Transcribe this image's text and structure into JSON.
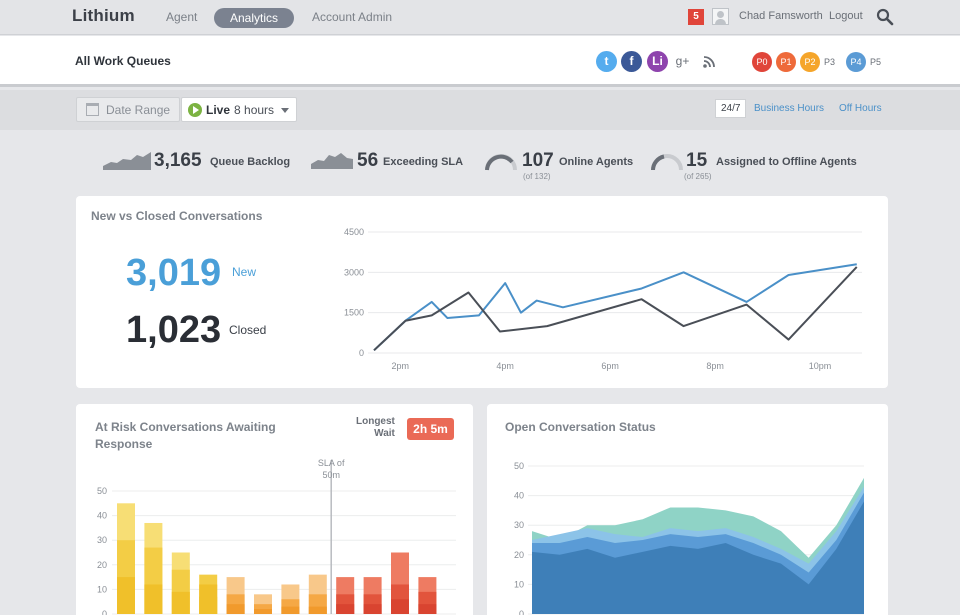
{
  "app": {
    "logo": "Lithium"
  },
  "nav": {
    "agent": "Agent",
    "analytics": "Analytics",
    "account_admin": "Account Admin"
  },
  "user": {
    "notifications": "5",
    "name": "Chad Famsworth",
    "logout": "Logout"
  },
  "header": {
    "title": "All Work Queues"
  },
  "social": [
    {
      "icon": "twitter-icon",
      "glyph": "t",
      "color": "#55acee"
    },
    {
      "icon": "facebook-icon",
      "glyph": "f",
      "color": "#3b5998"
    },
    {
      "icon": "lithium-icon",
      "glyph": "Li",
      "color": "#8e44ad"
    },
    {
      "icon": "google-plus-icon",
      "glyph": "g+",
      "color": "#ffffff"
    },
    {
      "icon": "rss-icon",
      "glyph": "",
      "color": "#ffffff"
    }
  ],
  "priorities": [
    {
      "label": "P0",
      "color": "#e0453a",
      "badge": true
    },
    {
      "label": "P1",
      "color": "#ee6a3a",
      "badge": true
    },
    {
      "label": "P2",
      "color": "#f5a52a",
      "badge": true
    },
    {
      "label": "P3",
      "badge": false
    },
    {
      "label": "P4",
      "color": "#5b9bd5",
      "badge": true
    },
    {
      "label": "P5",
      "badge": false
    }
  ],
  "filters": {
    "date_range": "Date Range",
    "live_label": "Live",
    "live_value": "8 hours",
    "hours_24_7": "24/7",
    "business_hours": "Business Hours",
    "off_hours": "Off Hours"
  },
  "stats": {
    "queue_backlog": {
      "value": "3,165",
      "label": "Queue Backlog"
    },
    "exceeding_sla": {
      "value": "56",
      "label": "Exceeding SLA"
    },
    "online_agents": {
      "value": "107",
      "label": "Online Agents",
      "sub": "(of 132)"
    },
    "offline_agents": {
      "value": "15",
      "label": "Assigned to Offline Agents",
      "sub": "(of 265)"
    }
  },
  "new_vs_closed": {
    "title": "New vs Closed Conversations",
    "new_value": "3,019",
    "new_label": "New",
    "closed_value": "1,023",
    "closed_label": "Closed"
  },
  "at_risk": {
    "title_line1": "At Risk Conversations Awaiting",
    "title_line2": "Response",
    "longest_line1": "Longest",
    "longest_line2": "Wait",
    "wait_value": "2h 5m",
    "sla_line1": "SLA of",
    "sla_line2": "50m"
  },
  "open_status": {
    "title": "Open Conversation Status"
  },
  "chart_data": [
    {
      "type": "line",
      "x_ticks": [
        "2pm",
        "4pm",
        "6pm",
        "8pm",
        "10pm"
      ],
      "ylim": [
        0,
        4500
      ],
      "y_ticks": [
        0,
        1500,
        3000,
        4500
      ],
      "series": [
        {
          "color": "#4a90c8",
          "x": [
            1.5,
            2.1,
            2.6,
            2.9,
            3.5,
            4.0,
            4.3,
            4.6,
            5.1,
            6.6,
            7.4,
            8.6,
            9.4,
            10.7
          ],
          "values": [
            100,
            1200,
            1900,
            1300,
            1400,
            2600,
            1500,
            1950,
            1700,
            2400,
            3000,
            1900,
            2900,
            3300
          ]
        },
        {
          "color": "#4a4f57",
          "x": [
            1.5,
            2.1,
            2.6,
            3.3,
            3.9,
            4.8,
            6.6,
            7.4,
            8.6,
            9.4,
            10.7
          ],
          "values": [
            100,
            1200,
            1400,
            2250,
            800,
            1000,
            2000,
            1000,
            1800,
            500,
            3200
          ]
        }
      ]
    },
    {
      "type": "bar",
      "ylim": [
        0,
        50
      ],
      "y_ticks": [
        0,
        10,
        20,
        30,
        40,
        50
      ],
      "reference_line_index": 8,
      "bars": [
        {
          "total": 45,
          "inner": 30,
          "base": 15,
          "light": "#f7de75",
          "mid": "#f3cd45",
          "dark": "#f0c02a"
        },
        {
          "total": 37,
          "inner": 27,
          "base": 12,
          "light": "#f7de75",
          "mid": "#f3cd45",
          "dark": "#f0c02a"
        },
        {
          "total": 25,
          "inner": 18,
          "base": 9,
          "light": "#f7de75",
          "mid": "#f3cd45",
          "dark": "#f0c02a"
        },
        {
          "total": 16,
          "inner": 12,
          "base": 7,
          "light": "#f3cd45",
          "mid": "#f0c02a",
          "dark": "#f0c02a"
        },
        {
          "total": 15,
          "inner": 8,
          "base": 4,
          "light": "#f8c88a",
          "mid": "#f5a845",
          "dark": "#f19a2c"
        },
        {
          "total": 8,
          "inner": 4,
          "base": 2,
          "light": "#f8c88a",
          "mid": "#f5a845",
          "dark": "#f19a2c"
        },
        {
          "total": 12,
          "inner": 6,
          "base": 3,
          "light": "#f8c88a",
          "mid": "#f5a845",
          "dark": "#f19a2c"
        },
        {
          "total": 16,
          "inner": 8,
          "base": 3,
          "light": "#f8c88a",
          "mid": "#f5a845",
          "dark": "#f19a2c"
        },
        {
          "total": 15,
          "inner": 8,
          "base": 4,
          "light": "#ee7b62",
          "mid": "#e2543c",
          "dark": "#d94430"
        },
        {
          "total": 15,
          "inner": 8,
          "base": 4,
          "light": "#ee7b62",
          "mid": "#e2543c",
          "dark": "#d94430"
        },
        {
          "total": 25,
          "inner": 12,
          "base": 6,
          "light": "#ee7b62",
          "mid": "#e2543c",
          "dark": "#d94430"
        },
        {
          "total": 15,
          "inner": 9,
          "base": 4,
          "light": "#ee7b62",
          "mid": "#e2543c",
          "dark": "#d94430"
        }
      ]
    },
    {
      "type": "area",
      "ylim": [
        0,
        50
      ],
      "y_ticks": [
        0,
        10,
        20,
        30,
        40,
        50
      ],
      "x": [
        0,
        1,
        2,
        3,
        4,
        5,
        6,
        7,
        8,
        9,
        10,
        11,
        12
      ],
      "layers": [
        {
          "color": "#3e7fb8",
          "values": [
            21,
            20,
            22,
            19,
            21,
            23,
            22,
            24,
            20,
            17,
            10,
            22,
            38
          ]
        },
        {
          "color": "#5a9bd6",
          "values": [
            24,
            24,
            26,
            24,
            25,
            27,
            26,
            27,
            24,
            20,
            14,
            25,
            41
          ]
        },
        {
          "color": "#8cc3e8",
          "values": [
            25,
            27,
            29,
            27,
            26,
            29,
            28,
            29,
            26,
            22,
            17,
            28,
            43
          ]
        },
        {
          "color": "#8fd3c6",
          "values": [
            28,
            25,
            30,
            30,
            32,
            36,
            36,
            35,
            33,
            28,
            19,
            30,
            46
          ]
        }
      ]
    }
  ]
}
